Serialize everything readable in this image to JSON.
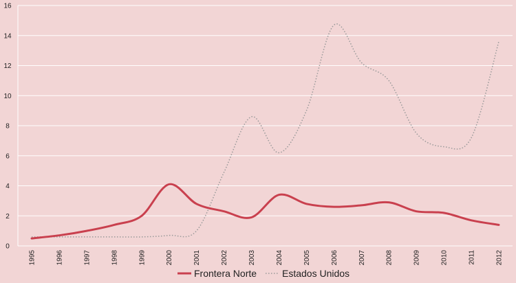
{
  "chart_data": {
    "type": "line",
    "x": [
      "1995",
      "1996",
      "1997",
      "1998",
      "1999",
      "2000",
      "2001",
      "2002",
      "2003",
      "2004",
      "2005",
      "2006",
      "2007",
      "2008",
      "2009",
      "2010",
      "2011",
      "2012"
    ],
    "ylim": [
      0,
      16
    ],
    "yticks": [
      0,
      2,
      4,
      6,
      8,
      10,
      12,
      14,
      16
    ],
    "grid": true,
    "legend_position": "bottom",
    "series": [
      {
        "name": "Frontera Norte",
        "style": "solid",
        "color": "#c9404e",
        "values": [
          0.5,
          0.7,
          1.0,
          1.4,
          2.0,
          4.1,
          2.8,
          2.3,
          1.9,
          3.4,
          2.8,
          2.6,
          2.7,
          2.9,
          2.3,
          2.2,
          1.7,
          1.4
        ]
      },
      {
        "name": "Estados Unidos",
        "style": "dotted",
        "color": "#999999",
        "values": [
          0.6,
          0.6,
          0.6,
          0.6,
          0.6,
          0.7,
          1.0,
          4.9,
          8.6,
          6.2,
          9.0,
          14.7,
          12.2,
          11.0,
          7.5,
          6.6,
          7.2,
          13.6
        ]
      }
    ]
  }
}
